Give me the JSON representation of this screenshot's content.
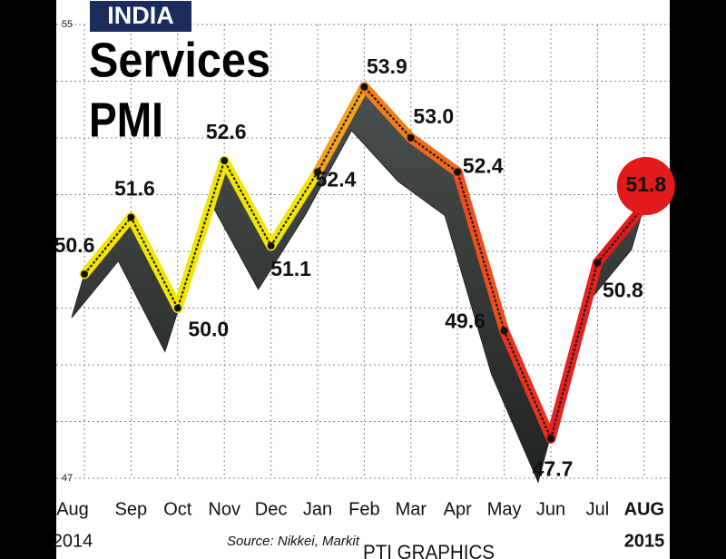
{
  "chart_data": {
    "type": "line",
    "badge": "INDIA",
    "title": "Services",
    "subtitle": "PMI",
    "categories": [
      "Aug",
      "Sep",
      "Oct",
      "Nov",
      "Dec",
      "Jan",
      "Feb",
      "Mar",
      "Apr",
      "May",
      "Jun",
      "Jul",
      "AUG"
    ],
    "start_year": "2014",
    "end_year": "2015",
    "series": [
      {
        "name": "Services PMI",
        "values": [
          50.6,
          51.6,
          50.0,
          52.6,
          51.1,
          52.4,
          53.9,
          53.0,
          52.4,
          49.6,
          47.7,
          50.8,
          51.8
        ],
        "value_labels": [
          "50.6",
          "51.6",
          "50.0",
          "52.6",
          "51.1",
          "52.4",
          "53.9",
          "53.0",
          "52.4",
          "49.6",
          "47.7",
          "50.8",
          "51.8"
        ],
        "segment_colors": [
          "#f2e600",
          "#f2e600",
          "#f2e600",
          "#f2e600",
          "#f2e600",
          "#f5a01e",
          "#f07f1a",
          "#ee6a1a",
          "#ec4f1d",
          "#e8321f",
          "#e42222",
          "#e21b1b"
        ]
      }
    ],
    "ylim": [
      47,
      55
    ],
    "yticks": [
      47,
      55
    ],
    "minor_yticks": [
      48,
      49,
      50,
      51,
      52,
      53,
      54
    ],
    "grid": true,
    "highlight_color": "#e11b1b",
    "source": "Source: Nikkei, Markit",
    "credit": "PTI GRAPHICS"
  }
}
